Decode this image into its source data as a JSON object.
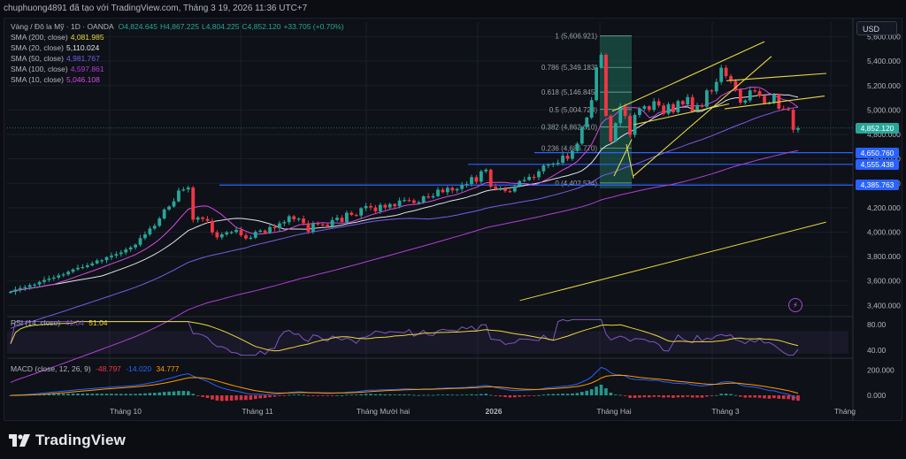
{
  "header": {
    "text": "chuphuong4891 đã tạo với TradingView.com, Tháng 3 19, 2026 11:36 UTC+7"
  },
  "legend": {
    "symbol": "Vàng / Đô la Mỹ · 1D · OANDA",
    "ohlc": [
      {
        "k": "O",
        "v": "4,824.645"
      },
      {
        "k": "H",
        "v": "4,867.225"
      },
      {
        "k": "L",
        "v": "4,804.225"
      },
      {
        "k": "C",
        "v": "4,852.120"
      },
      {
        "k": "",
        "v": "+33.705 (+0.70%)"
      }
    ],
    "sma": [
      {
        "label": "SMA (200, close)",
        "value": "4,081.985",
        "color": "#e8d83b"
      },
      {
        "label": "SMA (20, close)",
        "value": "5,110.024",
        "color": "#e0e3eb"
      },
      {
        "label": "SMA (50, close)",
        "value": "4,981.767",
        "color": "#7b5ae8"
      },
      {
        "label": "SMA (100, close)",
        "value": "4,597.861",
        "color": "#b03fd8"
      },
      {
        "label": "SMA (10, close)",
        "value": "5,046.108",
        "color": "#d24be0"
      }
    ],
    "rsi_label": "RSI (14, close)",
    "rsi_values": [
      "41.04",
      "51.04"
    ],
    "macd_label": "MACD (close, 12, 26, 9)",
    "macd_values": [
      "-48.797",
      "-14.020",
      "34.777"
    ]
  },
  "currency": "USD",
  "price_labels": [
    {
      "value": 4852.12,
      "text": "4,852.120",
      "color": "#26a69a"
    },
    {
      "value": 4650.76,
      "text": "4,650.760",
      "color": "#2962ff"
    },
    {
      "value": 4555.438,
      "text": "4,555.438",
      "color": "#2962ff"
    },
    {
      "value": 4385.763,
      "text": "4,385.763",
      "color": "#2962ff"
    }
  ],
  "fib_levels": [
    {
      "ratio": "1",
      "price": 5606.921,
      "text": "1 (5,606.921)"
    },
    {
      "ratio": "0.786",
      "price": 5349.183,
      "text": "0.786 (5,349.183)"
    },
    {
      "ratio": "0.618",
      "price": 5146.845,
      "text": "0.618 (5,146.845)"
    },
    {
      "ratio": "0.5",
      "price": 5004.728,
      "text": "0.5 (5,004.728)"
    },
    {
      "ratio": "0.382",
      "price": 4862.61,
      "text": "0.382 (4,862.610)"
    },
    {
      "ratio": "0.236",
      "price": 4686.77,
      "text": "0.236 (4,686.770)"
    },
    {
      "ratio": "0",
      "price": 4402.534,
      "text": "0 (4,402.534)"
    }
  ],
  "colors": {
    "up": "#26a69a",
    "down": "#f23645",
    "background": "#0e1117",
    "grid": "#1b1f2a",
    "hline": "#2962ff",
    "trend": "#e6d845",
    "fib_zone": "#1f6b5b"
  },
  "icons": {
    "alert": "lightning-icon",
    "logo": "tradingview-logo-icon"
  },
  "chart_data": [
    {
      "type": "candlestick",
      "title": "Vàng / Đô la Mỹ · 1D · OANDA",
      "y_axis": {
        "ticks": [
          3400,
          3600,
          3800,
          4000,
          4200,
          4400,
          4600,
          4800,
          5000,
          5200,
          5400,
          5600
        ],
        "tick_labels": [
          "3,400.000",
          "3,600.000",
          "3,800.000",
          "4,000.000",
          "4,200.000",
          "4,400.000",
          "4,600.000",
          "4,800.000",
          "5,000.000",
          "5,200.000",
          "5,400.000",
          "5,600.000"
        ],
        "range": [
          3330,
          5720
        ]
      },
      "x_axis": {
        "tick_labels": [
          "Tháng 10",
          "Tháng 11",
          "Tháng Mười hai",
          "2026",
          "Tháng Hai",
          "Tháng 3",
          "Tháng"
        ]
      },
      "closes": [
        3512,
        3530,
        3542,
        3550,
        3566,
        3571,
        3592,
        3609,
        3620,
        3628,
        3646,
        3654,
        3676,
        3695,
        3708,
        3714,
        3728,
        3744,
        3768,
        3770,
        3795,
        3808,
        3820,
        3834,
        3858,
        3875,
        3897,
        3951,
        3982,
        4029,
        4052,
        4112,
        4185,
        4210,
        4252,
        4341,
        4350,
        4365,
        4102,
        4121,
        4108,
        4092,
        3998,
        3957,
        3982,
        3998,
        4001,
        4019,
        3974,
        3948,
        3954,
        4003,
        4013,
        3993,
        4042,
        4032,
        4072,
        4082,
        4130,
        4106,
        4111,
        4073,
        4003,
        4072,
        4064,
        4061,
        4047,
        4099,
        4118,
        4083,
        4159,
        4141,
        4136,
        4196,
        4214,
        4202,
        4171,
        4223,
        4202,
        4230,
        4212,
        4259,
        4264,
        4260,
        4239,
        4245,
        4293,
        4284,
        4295,
        4348,
        4327,
        4363,
        4342,
        4354,
        4385,
        4394,
        4450,
        4413,
        4498,
        4512,
        4372,
        4354,
        4354,
        4336,
        4333,
        4376,
        4418,
        4427,
        4453,
        4450,
        4498,
        4545,
        4553,
        4562,
        4568,
        4626,
        4601,
        4666,
        4725,
        4861,
        4938,
        5081,
        5350,
        5452,
        4952,
        4742,
        4892,
        5029,
        4952,
        4797,
        4960,
        5011,
        5031,
        5002,
        5072,
        5037,
        4970,
        5048,
        4982,
        5074,
        5046,
        5106,
        4987,
        5040,
        5027,
        5161,
        5153,
        5230,
        5346,
        5278,
        5238,
        5167,
        5061,
        5079,
        5161,
        5154,
        5116,
        5057,
        5058,
        5129,
        5011,
        5006,
        5002,
        4838,
        4852
      ],
      "sma": {
        "200": {
          "from": [
            60,
            4
          ],
          "to": [
            168,
            4081.985
          ]
        },
        "100": "computed-from-closes",
        "50": "computed-from-closes",
        "20": "computed-from-closes",
        "10": "computed-from-closes"
      }
    },
    {
      "type": "line",
      "title": "RSI (14, close)",
      "y_axis": {
        "ticks": [
          40,
          80
        ],
        "tick_labels": [
          "40.00",
          "80.00"
        ],
        "range": [
          30,
          90
        ]
      },
      "values": [
        41.04
      ]
    },
    {
      "type": "bar",
      "title": "MACD (close, 12, 26, 9)",
      "y_axis": {
        "ticks": [
          0,
          200
        ],
        "tick_labels": [
          "0.000",
          "200.000"
        ],
        "range": [
          -70,
          260
        ]
      },
      "values": [
        -48.797,
        -14.02,
        34.777
      ]
    }
  ]
}
